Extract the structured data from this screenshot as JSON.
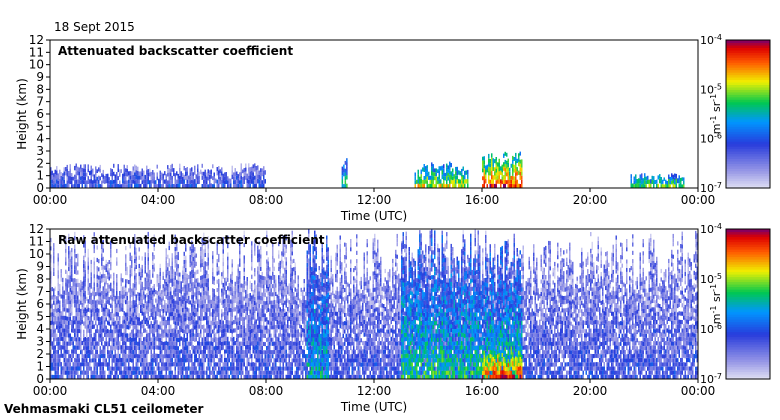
{
  "date": "18 Sept 2015",
  "station": "Vehmasmaki CL51 ceilometer",
  "chart_data": [
    {
      "type": "heatmap",
      "title": "Attenuated backscatter coefficient",
      "xlabel": "Time (UTC)",
      "ylabel": "Height (km)",
      "xlim": [
        0,
        24
      ],
      "ylim": [
        0,
        12
      ],
      "x_ticks": [
        "00:00",
        "04:00",
        "08:00",
        "12:00",
        "16:00",
        "20:00",
        "00:00"
      ],
      "y_ticks": [
        "0",
        "1",
        "2",
        "3",
        "4",
        "5",
        "6",
        "7",
        "8",
        "9",
        "10",
        "11",
        "12"
      ],
      "colorbar": {
        "scale": "log",
        "range": [
          1e-07,
          0.0001
        ],
        "tick_labels": [
          {
            "base": "10",
            "exp": "-4"
          },
          {
            "base": "10",
            "exp": "-5"
          },
          {
            "base": "10",
            "exp": "-6"
          },
          {
            "base": "10",
            "exp": "-7"
          }
        ],
        "unit": {
          "a": "m",
          "a_exp": "-1",
          "b": "sr",
          "b_exp": "-1"
        }
      },
      "features": [
        {
          "name": "boundary layer",
          "t_start": 0,
          "t_end": 8,
          "top_km": 2.0,
          "level": 0.28
        },
        {
          "name": "cloud",
          "t_start": 10.8,
          "t_end": 11.0,
          "top_km": 2.6,
          "level": 0.55
        },
        {
          "name": "cloud",
          "t_start": 13.5,
          "t_end": 15.5,
          "top_km": 2.2,
          "level": 0.7
        },
        {
          "name": "cloud",
          "t_start": 16.0,
          "t_end": 17.5,
          "top_km": 3.0,
          "level": 0.9
        },
        {
          "name": "cloud",
          "t_start": 21.5,
          "t_end": 23.5,
          "top_km": 1.2,
          "level": 0.6
        }
      ]
    },
    {
      "type": "heatmap",
      "title": "Raw attenuated backscatter coefficient",
      "xlabel": "Time (UTC)",
      "ylabel": "Height (km)",
      "xlim": [
        0,
        24
      ],
      "ylim": [
        0,
        12
      ],
      "x_ticks": [
        "00:00",
        "04:00",
        "08:00",
        "12:00",
        "16:00",
        "20:00",
        "00:00"
      ],
      "y_ticks": [
        "0",
        "1",
        "2",
        "3",
        "4",
        "5",
        "6",
        "7",
        "8",
        "9",
        "10",
        "11",
        "12"
      ],
      "colorbar": {
        "scale": "log",
        "range": [
          1e-07,
          0.0001
        ],
        "tick_labels": [
          {
            "base": "10",
            "exp": "-4"
          },
          {
            "base": "10",
            "exp": "-5"
          },
          {
            "base": "10",
            "exp": "-6"
          },
          {
            "base": "10",
            "exp": "-7"
          }
        ],
        "unit": {
          "a": "m",
          "a_exp": "-1",
          "b": "sr",
          "b_exp": "-1"
        }
      },
      "features": [
        {
          "name": "noise background",
          "t_start": 0,
          "t_end": 24,
          "top_km": 12,
          "level": 0.25
        },
        {
          "name": "high noise",
          "t_start": 9.5,
          "t_end": 10.3,
          "top_km": 12,
          "level": 0.5
        },
        {
          "name": "high noise",
          "t_start": 13.0,
          "t_end": 17.5,
          "top_km": 12,
          "level": 0.55
        },
        {
          "name": "cloud",
          "t_start": 16.0,
          "t_end": 17.5,
          "top_km": 3.0,
          "level": 0.9
        }
      ]
    }
  ]
}
